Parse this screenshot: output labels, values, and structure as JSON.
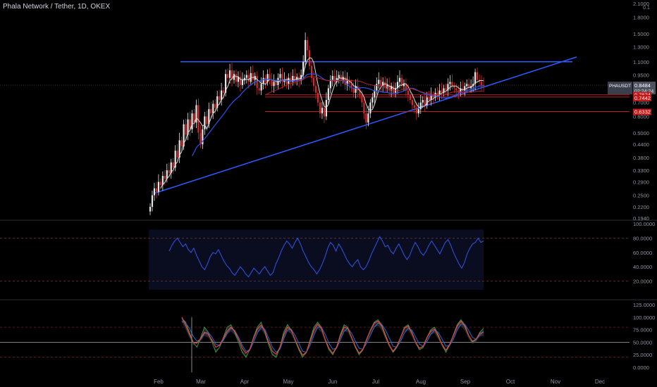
{
  "header": {
    "title": "Phala Network / Tether, 1D, OKEX"
  },
  "colors": {
    "bg": "#000000",
    "up": "#e6e6e6",
    "down": "#d12b2b",
    "trend": "#2c5bff",
    "ma_fast": "#d8d8d8",
    "ma_slow": "#3050e6",
    "zone": "#b3222a",
    "rsi": "#2e4fd6",
    "osc_fast": "#e8463c",
    "osc_slow": "#2d69d8",
    "osc_green": "#3a9c4a",
    "label_bg": "#c01818"
  },
  "chart_data": [
    {
      "type": "candlestick",
      "name": "price",
      "scale": "log",
      "y_axis": {
        "unit": "USDT",
        "ticks": [
          "2.1000",
          "1.8000",
          "1.5000",
          "1.3000",
          "1.1000",
          "0.9500",
          "0.8000",
          "0.7000",
          "0.6000",
          "0.5000",
          "0.4400",
          "0.3800",
          "0.3300",
          "0.2900",
          "0.2500",
          "0.2200",
          "0.1940"
        ]
      },
      "x_axis": {
        "ticks": [
          "Feb",
          "Mar",
          "Apr",
          "May",
          "Jun",
          "Jul",
          "Aug",
          "Sep",
          "Oct",
          "Nov",
          "Dec"
        ]
      },
      "current_price": "0.8484",
      "countdown": "02:24:24",
      "symbol_label": "PHAUSDT",
      "price_labels": [
        "0.7624",
        "0.7442",
        "0.6332"
      ],
      "closes": [
        0.22,
        0.25,
        0.27,
        0.26,
        0.29,
        0.28,
        0.31,
        0.3,
        0.33,
        0.32,
        0.36,
        0.34,
        0.41,
        0.38,
        0.46,
        0.43,
        0.55,
        0.49,
        0.58,
        0.52,
        0.62,
        0.56,
        0.68,
        0.5,
        0.44,
        0.52,
        0.6,
        0.55,
        0.65,
        0.62,
        0.69,
        0.66,
        0.75,
        0.72,
        0.8,
        0.78,
        0.96,
        0.92,
        1.0,
        0.9,
        0.96,
        0.88,
        0.93,
        0.85,
        0.9,
        0.92,
        0.95,
        0.88,
        0.97,
        0.9,
        0.94,
        0.82,
        0.8,
        0.86,
        0.92,
        0.88,
        0.96,
        0.9,
        0.84,
        0.88,
        0.85,
        0.92,
        0.96,
        0.88,
        0.9,
        0.86,
        0.92,
        0.88,
        0.94,
        0.9,
        0.93,
        0.89,
        0.95,
        1.1,
        1.4,
        1.25,
        1.05,
        0.92,
        0.84,
        0.78,
        0.7,
        0.62,
        0.66,
        0.6,
        0.72,
        0.82,
        0.9,
        0.94,
        0.88,
        0.92,
        0.95,
        0.9,
        0.93,
        0.85,
        0.9,
        0.86,
        0.82,
        0.78,
        0.84,
        0.8,
        0.76,
        0.7,
        0.62,
        0.56,
        0.62,
        0.7,
        0.74,
        0.8,
        0.86,
        0.9,
        0.84,
        0.88,
        0.82,
        0.85,
        0.8,
        0.84,
        0.78,
        0.82,
        0.88,
        0.92,
        0.84,
        0.86,
        0.8,
        0.76,
        0.72,
        0.68,
        0.66,
        0.62,
        0.65,
        0.7,
        0.72,
        0.68,
        0.74,
        0.72,
        0.76,
        0.74,
        0.78,
        0.76,
        0.8,
        0.78,
        0.82,
        0.8,
        0.86,
        0.88,
        0.84,
        0.82,
        0.8,
        0.78,
        0.82,
        0.8,
        0.84,
        0.86,
        0.82,
        0.84,
        0.86,
        0.98,
        0.9,
        0.88,
        0.85,
        0.8484
      ],
      "trendline": {
        "from": [
          "Feb",
          0.25
        ],
        "to": [
          "Nov",
          1.15
        ]
      },
      "resistance": 1.1,
      "support_levels": [
        0.7624,
        0.7442,
        0.6332
      ]
    },
    {
      "type": "line",
      "name": "RSI",
      "ylim": [
        0,
        100
      ],
      "ticks": [
        "100.0000",
        "80.0000",
        "60.0000",
        "40.0000",
        "20.0000"
      ],
      "bands": [
        80,
        20
      ],
      "values": [
        62,
        70,
        76,
        80,
        74,
        68,
        72,
        64,
        60,
        66,
        56,
        48,
        40,
        36,
        44,
        54,
        60,
        58,
        64,
        56,
        48,
        42,
        38,
        32,
        28,
        34,
        40,
        36,
        30,
        26,
        32,
        38,
        34,
        30,
        36,
        40,
        34,
        28,
        32,
        44,
        52,
        62,
        70,
        76,
        72,
        66,
        74,
        80,
        72,
        62,
        54,
        46,
        40,
        36,
        30,
        36,
        44,
        54,
        66,
        74,
        70,
        62,
        72,
        66,
        58,
        50,
        44,
        40,
        46,
        50,
        40,
        36,
        40,
        48,
        58,
        66,
        74,
        82,
        76,
        68,
        70,
        62,
        58,
        66,
        72,
        64,
        56,
        50,
        56,
        66,
        74,
        68,
        60,
        56,
        62,
        70,
        76,
        70,
        64,
        58,
        66,
        74,
        78,
        70,
        60,
        52,
        44,
        38,
        46,
        58,
        66,
        72,
        74,
        80,
        74,
        76
      ]
    },
    {
      "type": "line",
      "name": "Stochastic",
      "ylim": [
        -10,
        130
      ],
      "ticks": [
        "125.0000",
        "100.0000",
        "75.0000",
        "50.0000",
        "25.0000",
        "0.0000"
      ],
      "bands": [
        80,
        50,
        20
      ],
      "series": [
        {
          "values": [
            98,
            90,
            70,
            50,
            40,
            60,
            80,
            70,
            50,
            30,
            40,
            60,
            80,
            85,
            70,
            50,
            30,
            20,
            35,
            60,
            80,
            90,
            70,
            45,
            25,
            20,
            40,
            70,
            85,
            75,
            55,
            35,
            20,
            30,
            55,
            80,
            90,
            80,
            55,
            35,
            25,
            40,
            65,
            85,
            80,
            60,
            40,
            25,
            35,
            55,
            75,
            90,
            95,
            85,
            65,
            45,
            30,
            40,
            60,
            80,
            85,
            70,
            50,
            35,
            40,
            60,
            75,
            80,
            65,
            45,
            30,
            45,
            65,
            85,
            95,
            85,
            65,
            50,
            55,
            70,
            78
          ]
        },
        {
          "values": [
            92,
            88,
            78,
            62,
            52,
            56,
            68,
            70,
            60,
            46,
            44,
            54,
            68,
            78,
            74,
            60,
            44,
            32,
            34,
            50,
            68,
            80,
            76,
            58,
            40,
            30,
            36,
            56,
            74,
            76,
            64,
            48,
            32,
            30,
            44,
            64,
            80,
            80,
            66,
            48,
            36,
            38,
            54,
            72,
            78,
            68,
            52,
            38,
            36,
            48,
            64,
            80,
            88,
            86,
            74,
            58,
            42,
            40,
            52,
            68,
            78,
            74,
            60,
            46,
            42,
            52,
            66,
            74,
            70,
            56,
            42,
            44,
            56,
            74,
            86,
            86,
            74,
            60,
            56,
            64,
            72
          ]
        },
        {
          "values": [
            100,
            84,
            66,
            50,
            48,
            58,
            70,
            66,
            54,
            40,
            44,
            58,
            72,
            80,
            72,
            56,
            38,
            28,
            36,
            58,
            76,
            84,
            72,
            50,
            32,
            26,
            40,
            64,
            80,
            74,
            56,
            38,
            24,
            30,
            52,
            74,
            86,
            78,
            56,
            38,
            28,
            40,
            62,
            80,
            78,
            60,
            42,
            28,
            36,
            56,
            74,
            88,
            92,
            82,
            62,
            44,
            32,
            42,
            60,
            78,
            82,
            68,
            50,
            38,
            42,
            60,
            72,
            76,
            62,
            46,
            34,
            46,
            64,
            82,
            92,
            82,
            64,
            52,
            56,
            68,
            70
          ]
        }
      ]
    }
  ]
}
